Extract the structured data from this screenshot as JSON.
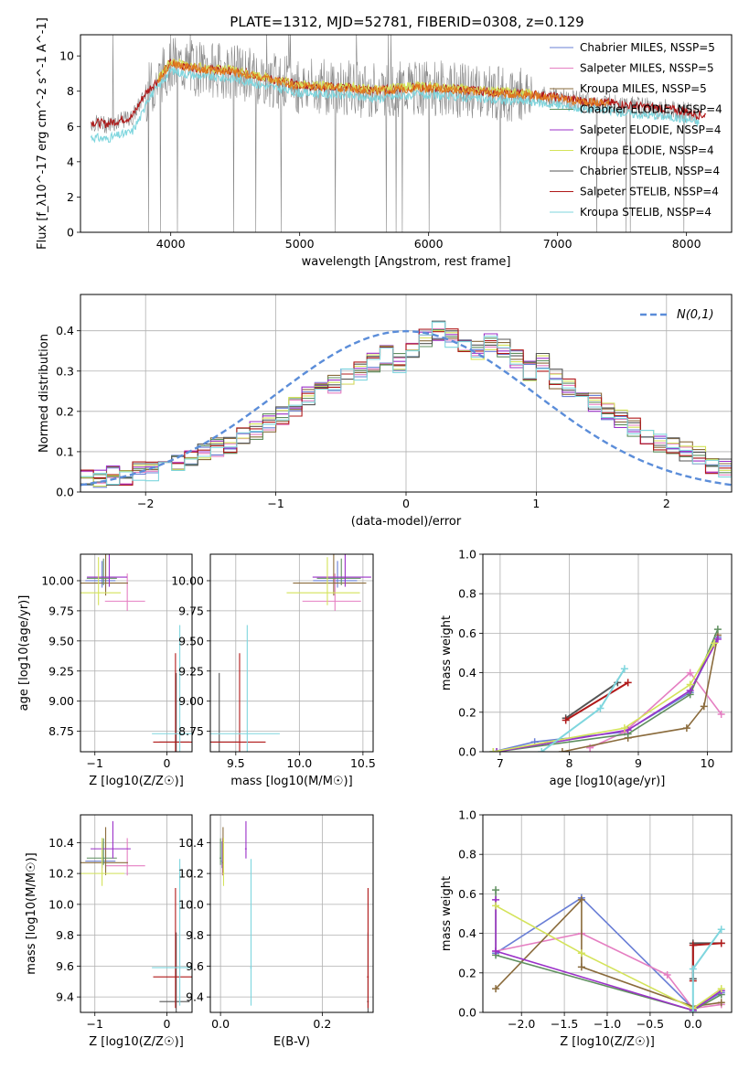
{
  "title": "PLATE=1312, MJD=52781, FIBERID=0308, z=0.129",
  "colors": {
    "chabrier_miles": "#6a7fd6",
    "salpeter_miles": "#e57fc2",
    "kroupa_miles": "#8a6b3c",
    "chabrier_elodie": "#5f8f5f",
    "salpeter_elodie": "#9b30c8",
    "kroupa_elodie": "#d4e35a",
    "chabrier_stelib": "#555555",
    "salpeter_stelib": "#b01818",
    "kroupa_stelib": "#7fd6de",
    "normal": "#5b8dd9",
    "orange": "#e07a1f"
  },
  "chart_data": [
    {
      "id": "spectrum",
      "type": "line",
      "title": "PLATE=1312, MJD=52781, FIBERID=0308, z=0.129",
      "xlabel": "wavelength [Angstrom, rest frame]",
      "ylabel": "Flux [f_λ10^-17 erg cm^-2 s^-1 A^-1]",
      "xlim": [
        3300,
        8350
      ],
      "ylim": [
        0,
        11.2
      ],
      "xticks": [
        4000,
        5000,
        6000,
        7000,
        8000
      ],
      "yticks": [
        0,
        2,
        4,
        6,
        8,
        10
      ],
      "legend": "top-right",
      "legend_entries": [
        "Chabrier MILES, N_SSP=5",
        "Salpeter MILES, N_SSP=5",
        "Kroupa MILES, N_SSP=5",
        "Chabrier ELODIE, N_SSP=4",
        "Salpeter ELODIE, N_SSP=4",
        "Kroupa ELODIE, N_SSP=4",
        "Chabrier STELIB, N_SSP=4",
        "Salpeter STELIB, N_SSP=4",
        "Kroupa STELIB, N_SSP=4"
      ],
      "data_envelope": {
        "x": [
          3380,
          3500,
          3600,
          3700,
          3800,
          3900,
          4000,
          4100,
          4300,
          4500,
          4800,
          5000,
          5300,
          5600,
          5900,
          6200,
          6500,
          6800,
          7000,
          7200,
          7400,
          7600,
          7800,
          8000,
          8100
        ],
        "y": [
          6.2,
          6.1,
          6.3,
          6.5,
          7.8,
          8.6,
          9.6,
          9.4,
          9.2,
          9.1,
          8.6,
          8.3,
          8.2,
          8.0,
          8.2,
          8.1,
          7.9,
          7.8,
          7.6,
          7.4,
          7.3,
          7.1,
          7.0,
          6.8,
          6.6
        ]
      }
    },
    {
      "id": "residuals",
      "type": "bar",
      "xlabel": "(data-model)/error",
      "ylabel": "Normed distribution",
      "xlim": [
        -2.5,
        2.5
      ],
      "ylim": [
        0,
        0.49
      ],
      "xticks": [
        -2,
        -1,
        0,
        1,
        2
      ],
      "yticks": [
        0.0,
        0.1,
        0.2,
        0.3,
        0.4
      ],
      "legend": "top-right",
      "normal_label": "N(0,1)",
      "bin_edges_start": -2.5,
      "bin_width": 0.1,
      "histogram": [
        0.03,
        0.03,
        0.04,
        0.04,
        0.05,
        0.05,
        0.06,
        0.07,
        0.09,
        0.1,
        0.11,
        0.12,
        0.14,
        0.15,
        0.17,
        0.19,
        0.21,
        0.24,
        0.25,
        0.27,
        0.29,
        0.3,
        0.32,
        0.34,
        0.32,
        0.35,
        0.38,
        0.4,
        0.38,
        0.36,
        0.35,
        0.37,
        0.36,
        0.33,
        0.3,
        0.32,
        0.28,
        0.26,
        0.24,
        0.22,
        0.2,
        0.18,
        0.16,
        0.14,
        0.12,
        0.11,
        0.1,
        0.09,
        0.07,
        0.06,
        0.05
      ]
    },
    {
      "id": "age-vs-z",
      "type": "scatter",
      "xlabel": "Z [log10(Z/Z☉)]",
      "ylabel": "age  [log10(age/yr)]",
      "xlim": [
        -1.2,
        0.35
      ],
      "ylim": [
        8.58,
        10.22
      ],
      "xticks": [
        -1,
        0
      ],
      "yticks": [
        8.75,
        9.0,
        9.25,
        9.5,
        9.75,
        10.0
      ],
      "points": [
        {
          "series": "chabrier_miles",
          "x": -0.9,
          "y": 10.0
        },
        {
          "series": "salpeter_miles",
          "x": -0.55,
          "y": 9.83
        },
        {
          "series": "kroupa_miles",
          "x": -0.85,
          "y": 9.98
        },
        {
          "series": "chabrier_elodie",
          "x": -0.88,
          "y": 10.02
        },
        {
          "series": "salpeter_elodie",
          "x": -0.8,
          "y": 10.03
        },
        {
          "series": "kroupa_elodie",
          "x": -0.95,
          "y": 9.9
        },
        {
          "series": "chabrier_stelib",
          "x": 0.13,
          "y": 8.66
        },
        {
          "series": "salpeter_stelib",
          "x": 0.12,
          "y": 8.66
        },
        {
          "series": "kroupa_stelib",
          "x": 0.18,
          "y": 8.73
        }
      ]
    },
    {
      "id": "age-vs-mass",
      "type": "scatter",
      "xlabel": "mass [log10(M/M☉)]",
      "ylabel": "",
      "xlim": [
        9.3,
        10.58
      ],
      "ylim": [
        8.58,
        10.22
      ],
      "xticks": [
        9.5,
        10.0,
        10.5
      ],
      "yticks": [
        8.75,
        9.0,
        9.25,
        9.5,
        9.75,
        10.0
      ],
      "points": [
        {
          "series": "chabrier_miles",
          "x": 10.3,
          "y": 10.0
        },
        {
          "series": "salpeter_miles",
          "x": 10.28,
          "y": 9.83
        },
        {
          "series": "kroupa_miles",
          "x": 10.27,
          "y": 9.98
        },
        {
          "series": "chabrier_elodie",
          "x": 10.33,
          "y": 10.02
        },
        {
          "series": "salpeter_elodie",
          "x": 10.36,
          "y": 10.03
        },
        {
          "series": "kroupa_elodie",
          "x": 10.22,
          "y": 9.9
        },
        {
          "series": "chabrier_stelib",
          "x": 9.37,
          "y": 8.66
        },
        {
          "series": "salpeter_stelib",
          "x": 9.53,
          "y": 8.66
        },
        {
          "series": "kroupa_stelib",
          "x": 9.59,
          "y": 8.73
        }
      ]
    },
    {
      "id": "weight-vs-age",
      "type": "line",
      "xlabel": "age  [log10(age/yr)]",
      "ylabel": "mass weight",
      "xlim": [
        6.75,
        10.35
      ],
      "ylim": [
        0,
        1.0
      ],
      "xticks": [
        7,
        8,
        9,
        10
      ],
      "yticks": [
        0.0,
        0.2,
        0.4,
        0.6,
        0.8,
        1.0
      ],
      "series": [
        {
          "key": "chabrier_miles",
          "x": [
            6.9,
            7.5,
            8.8,
            9.75,
            10.15
          ],
          "y": [
            0.0,
            0.05,
            0.1,
            0.3,
            0.58
          ]
        },
        {
          "key": "salpeter_miles",
          "x": [
            8.3,
            8.8,
            9.75,
            10.2
          ],
          "y": [
            0.02,
            0.1,
            0.4,
            0.19
          ]
        },
        {
          "key": "kroupa_miles",
          "x": [
            7.9,
            8.85,
            9.7,
            9.95,
            10.15
          ],
          "y": [
            0.0,
            0.07,
            0.12,
            0.23,
            0.59
          ]
        },
        {
          "key": "chabrier_elodie",
          "x": [
            6.95,
            8.85,
            9.75,
            10.15
          ],
          "y": [
            0.0,
            0.09,
            0.29,
            0.62
          ]
        },
        {
          "key": "salpeter_elodie",
          "x": [
            6.95,
            8.85,
            9.75,
            10.15
          ],
          "y": [
            0.0,
            0.11,
            0.31,
            0.57
          ]
        },
        {
          "key": "kroupa_elodie",
          "x": [
            6.9,
            8.8,
            9.75,
            10.1
          ],
          "y": [
            0.0,
            0.12,
            0.34,
            0.55
          ]
        },
        {
          "key": "chabrier_stelib",
          "x": [
            7.95,
            8.7
          ],
          "y": [
            0.17,
            0.35
          ]
        },
        {
          "key": "salpeter_stelib",
          "x": [
            7.95,
            8.85
          ],
          "y": [
            0.16,
            0.35
          ]
        },
        {
          "key": "kroupa_stelib",
          "x": [
            7.6,
            8.45,
            8.8
          ],
          "y": [
            0.0,
            0.22,
            0.42
          ]
        }
      ]
    },
    {
      "id": "mass-vs-z",
      "type": "scatter",
      "xlabel": "Z [log10(Z/Z☉)]",
      "ylabel": "mass [log10(M/M☉)]",
      "xlim": [
        -1.2,
        0.35
      ],
      "ylim": [
        9.3,
        10.58
      ],
      "xticks": [
        -1,
        0
      ],
      "yticks": [
        9.4,
        9.6,
        9.8,
        10.0,
        10.2,
        10.4
      ],
      "points": [
        {
          "series": "chabrier_miles",
          "x": -0.9,
          "y": 10.28
        },
        {
          "series": "salpeter_miles",
          "x": -0.55,
          "y": 10.25
        },
        {
          "series": "kroupa_miles",
          "x": -0.85,
          "y": 10.27
        },
        {
          "series": "chabrier_elodie",
          "x": -0.88,
          "y": 10.3
        },
        {
          "series": "salpeter_elodie",
          "x": -0.75,
          "y": 10.36
        },
        {
          "series": "kroupa_elodie",
          "x": -0.9,
          "y": 10.2
        },
        {
          "series": "chabrier_stelib",
          "x": 0.13,
          "y": 9.37
        },
        {
          "series": "salpeter_stelib",
          "x": 0.12,
          "y": 9.53
        },
        {
          "series": "kroupa_stelib",
          "x": 0.18,
          "y": 9.59
        }
      ]
    },
    {
      "id": "mass-vs-ebv",
      "type": "scatter",
      "xlabel": "E(B-V)",
      "ylabel": "",
      "xlim": [
        -0.02,
        0.3
      ],
      "ylim": [
        9.3,
        10.58
      ],
      "xticks": [
        0.0,
        0.2
      ],
      "yticks": [
        9.4,
        9.6,
        9.8,
        10.0,
        10.2,
        10.4
      ],
      "points": [
        {
          "series": "chabrier_miles",
          "x": 0.003,
          "y": 10.28
        },
        {
          "series": "salpeter_miles",
          "x": 0.004,
          "y": 10.25
        },
        {
          "series": "kroupa_miles",
          "x": 0.005,
          "y": 10.27
        },
        {
          "series": "chabrier_elodie",
          "x": 0.0,
          "y": 10.3
        },
        {
          "series": "salpeter_elodie",
          "x": 0.05,
          "y": 10.36
        },
        {
          "series": "kroupa_elodie",
          "x": 0.006,
          "y": 10.2
        },
        {
          "series": "chabrier_stelib",
          "x": 0.29,
          "y": 9.37
        },
        {
          "series": "salpeter_stelib",
          "x": 0.29,
          "y": 9.53
        },
        {
          "series": "kroupa_stelib",
          "x": 0.06,
          "y": 9.59
        }
      ]
    },
    {
      "id": "weight-vs-z",
      "type": "line",
      "xlabel": "Z [log10(Z/Z☉)]",
      "ylabel": "mass weight",
      "xlim": [
        -2.45,
        0.45
      ],
      "ylim": [
        0,
        1.0
      ],
      "xticks": [
        -2.0,
        -1.5,
        -1.0,
        -0.5,
        0.0
      ],
      "yticks": [
        0.0,
        0.2,
        0.4,
        0.6,
        0.8,
        1.0
      ],
      "series": [
        {
          "key": "chabrier_miles",
          "x": [
            -2.3,
            -1.3,
            0.0,
            0.33
          ],
          "y": [
            0.3,
            0.58,
            0.02,
            0.1
          ]
        },
        {
          "key": "salpeter_miles",
          "x": [
            -2.3,
            -1.3,
            -0.3,
            0.0,
            0.33
          ],
          "y": [
            0.31,
            0.4,
            0.19,
            0.02,
            0.04
          ]
        },
        {
          "key": "kroupa_miles",
          "x": [
            -2.3,
            -1.3,
            -1.3,
            0.0,
            0.33
          ],
          "y": [
            0.12,
            0.57,
            0.23,
            0.03,
            0.05
          ]
        },
        {
          "key": "chabrier_elodie",
          "x": [
            -2.3,
            -2.3,
            0.0,
            0.33
          ],
          "y": [
            0.62,
            0.29,
            0.01,
            0.09
          ]
        },
        {
          "key": "salpeter_elodie",
          "x": [
            -2.3,
            -2.3,
            0.0,
            0.33
          ],
          "y": [
            0.57,
            0.31,
            0.01,
            0.11
          ]
        },
        {
          "key": "kroupa_elodie",
          "x": [
            -2.3,
            -1.3,
            0.0,
            0.33
          ],
          "y": [
            0.54,
            0.3,
            0.02,
            0.12
          ]
        },
        {
          "key": "chabrier_stelib",
          "x": [
            0.0,
            0.0,
            0.33
          ],
          "y": [
            0.17,
            0.35,
            0.35
          ]
        },
        {
          "key": "salpeter_stelib",
          "x": [
            0.0,
            0.0,
            0.33
          ],
          "y": [
            0.16,
            0.34,
            0.35
          ]
        },
        {
          "key": "kroupa_stelib",
          "x": [
            0.0,
            0.0,
            0.33
          ],
          "y": [
            0.0,
            0.22,
            0.42
          ]
        }
      ]
    }
  ]
}
